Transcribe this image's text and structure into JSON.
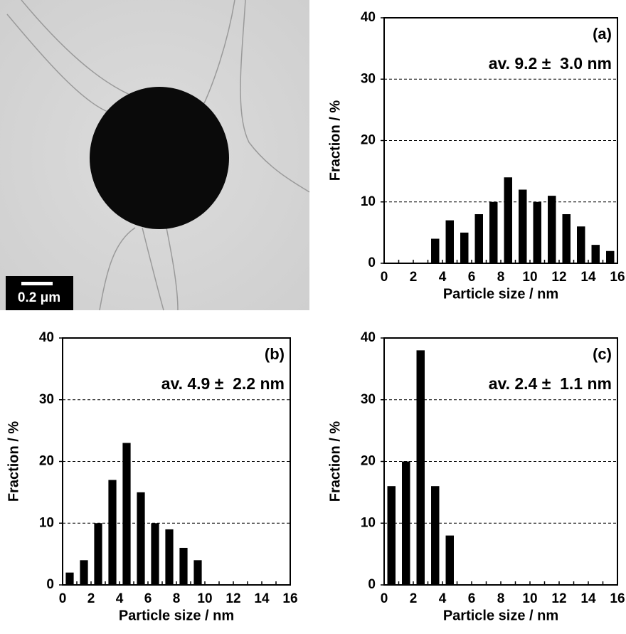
{
  "image": {
    "scale_bar": "0.2 μm"
  },
  "chart_data": [
    {
      "type": "histogram",
      "label": "(a)",
      "annotation": "av. 9.2 ±  3.0 nm",
      "x_label": "Particle size / nm",
      "y_label": "Fraction / %",
      "bins": [
        0,
        1,
        2,
        3,
        4,
        5,
        6,
        7,
        8,
        9,
        10,
        11,
        12,
        13,
        14,
        15,
        16
      ],
      "values": [
        0,
        0,
        0,
        4,
        7,
        5,
        8,
        10,
        14,
        12,
        10,
        11,
        8,
        6,
        3,
        2
      ],
      "color": "#000000",
      "xlim": [
        0,
        16
      ],
      "xticks": [
        0,
        2,
        4,
        6,
        8,
        10,
        12,
        14,
        16
      ],
      "ylim": [
        0,
        40
      ],
      "yticks": [
        0,
        10,
        20,
        30,
        40
      ],
      "grid": true
    },
    {
      "type": "histogram",
      "label": "(b)",
      "annotation": "av. 4.9 ±  2.2 nm",
      "x_label": "Particle size / nm",
      "y_label": "Fraction / %",
      "bins": [
        0,
        1,
        2,
        3,
        4,
        5,
        6,
        7,
        8,
        9,
        10,
        11,
        12,
        13,
        14,
        15,
        16
      ],
      "values": [
        2,
        4,
        10,
        17,
        23,
        15,
        10,
        9,
        6,
        4,
        0,
        0,
        0,
        0,
        0,
        0
      ],
      "color": "#000000",
      "xlim": [
        0,
        16
      ],
      "xticks": [
        0,
        2,
        4,
        6,
        8,
        10,
        12,
        14,
        16
      ],
      "ylim": [
        0,
        40
      ],
      "yticks": [
        0,
        10,
        20,
        30,
        40
      ],
      "grid": true
    },
    {
      "type": "histogram",
      "label": "(c)",
      "annotation": "av. 2.4 ±  1.1 nm",
      "x_label": "Particle size / nm",
      "y_label": "Fraction / %",
      "bins": [
        0,
        1,
        2,
        3,
        4,
        5,
        6,
        7,
        8,
        9,
        10,
        11,
        12,
        13,
        14,
        15,
        16
      ],
      "values": [
        16,
        20,
        38,
        16,
        8,
        0,
        0,
        0,
        0,
        0,
        0,
        0,
        0,
        0,
        0,
        0
      ],
      "color": "#000000",
      "xlim": [
        0,
        16
      ],
      "xticks": [
        0,
        2,
        4,
        6,
        8,
        10,
        12,
        14,
        16
      ],
      "ylim": [
        0,
        40
      ],
      "yticks": [
        0,
        10,
        20,
        30,
        40
      ],
      "grid": true
    }
  ]
}
